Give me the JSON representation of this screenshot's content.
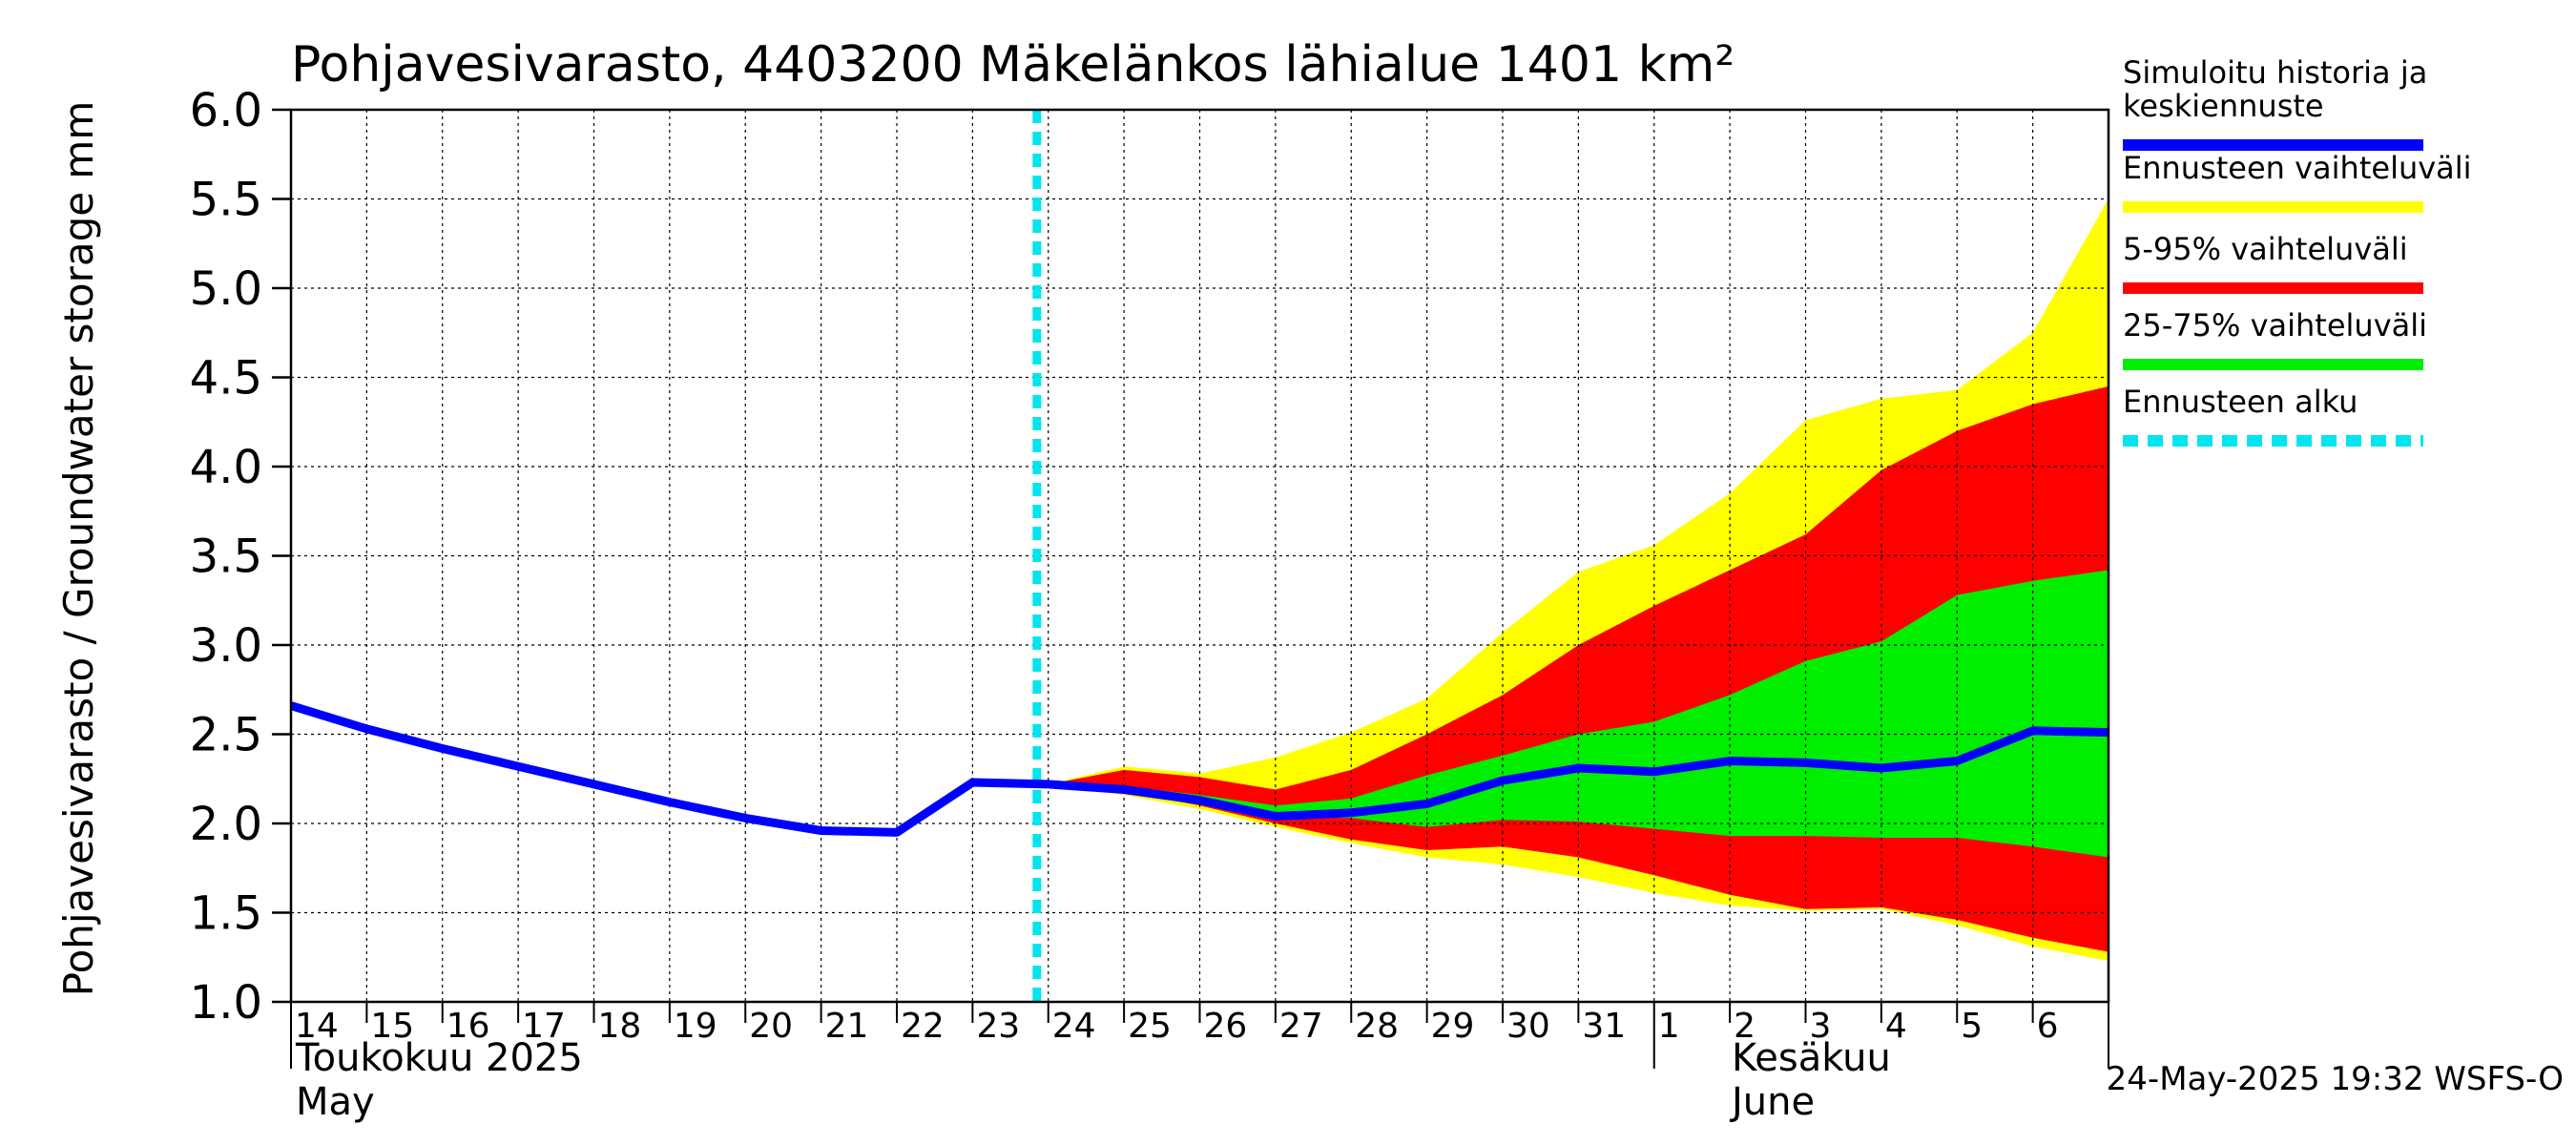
{
  "chart_data": {
    "type": "area",
    "title": "Pohjavesivarasto, 4403200 Mäkelänkos lähialue 1401 km²",
    "ylabel": "Pohjavesivarasto / Groundwater storage   mm",
    "ylim": [
      1.0,
      6.0
    ],
    "y_ticks": [
      "1.0",
      "1.5",
      "2.0",
      "2.5",
      "3.0",
      "3.5",
      "4.0",
      "4.5",
      "5.0",
      "5.5",
      "6.0"
    ],
    "x_tick_labels": [
      "14",
      "15",
      "16",
      "17",
      "18",
      "19",
      "20",
      "21",
      "22",
      "23",
      "24",
      "25",
      "26",
      "27",
      "28",
      "29",
      "30",
      "31",
      "1",
      "2",
      "3",
      "4",
      "5",
      "6"
    ],
    "month_labels": {
      "may_fi": "Toukokuu  2025",
      "may_en": "May",
      "june_fi": "Kesäkuu",
      "june_en": "June"
    },
    "forecast_start_day_index": 9.85,
    "history": {
      "name": "Simuloitu historia ja keskiennuste",
      "x": [
        0,
        1,
        2,
        3,
        4,
        5,
        6,
        7,
        8,
        9,
        10
      ],
      "y": [
        2.66,
        2.53,
        2.42,
        2.32,
        2.22,
        2.12,
        2.03,
        1.96,
        1.95,
        2.23,
        2.22
      ]
    },
    "forecast_x": [
      10,
      11,
      12,
      13,
      14,
      15,
      16,
      17,
      18,
      19,
      20,
      21,
      22,
      23,
      24
    ],
    "median": [
      2.22,
      2.19,
      2.13,
      2.04,
      2.06,
      2.11,
      2.24,
      2.31,
      2.29,
      2.35,
      2.34,
      2.31,
      2.35,
      2.52,
      2.51
    ],
    "p25": [
      2.22,
      2.19,
      2.12,
      2.04,
      2.03,
      1.98,
      2.02,
      2.01,
      1.97,
      1.93,
      1.93,
      1.92,
      1.92,
      1.87,
      1.81
    ],
    "p75": [
      2.22,
      2.21,
      2.16,
      2.1,
      2.14,
      2.27,
      2.38,
      2.5,
      2.57,
      2.72,
      2.91,
      3.02,
      3.28,
      3.36,
      3.42
    ],
    "p5": [
      2.22,
      2.18,
      2.1,
      2.0,
      1.91,
      1.85,
      1.87,
      1.81,
      1.71,
      1.6,
      1.52,
      1.53,
      1.46,
      1.36,
      1.28
    ],
    "p95": [
      2.22,
      2.3,
      2.26,
      2.19,
      2.3,
      2.5,
      2.72,
      3.0,
      3.22,
      3.42,
      3.62,
      3.98,
      4.2,
      4.35,
      4.45
    ],
    "min": [
      2.22,
      2.16,
      2.08,
      1.98,
      1.89,
      1.81,
      1.77,
      1.7,
      1.61,
      1.54,
      1.51,
      1.52,
      1.43,
      1.31,
      1.23
    ],
    "max": [
      2.22,
      2.32,
      2.28,
      2.37,
      2.51,
      2.7,
      3.07,
      3.41,
      3.56,
      3.85,
      4.26,
      4.38,
      4.43,
      4.75,
      5.5
    ],
    "legend": [
      {
        "label_lines": [
          "Simuloitu historia ja",
          "keskiennuste"
        ],
        "color": "#0000ff",
        "style": "solid"
      },
      {
        "label_lines": [
          "Ennusteen vaihteluväli"
        ],
        "color": "#ffff00",
        "style": "solid"
      },
      {
        "label_lines": [
          "5-95% vaihteluväli"
        ],
        "color": "#ff0000",
        "style": "solid"
      },
      {
        "label_lines": [
          "25-75% vaihteluväli"
        ],
        "color": "#00ee00",
        "style": "solid"
      },
      {
        "label_lines": [
          "Ennusteen alku"
        ],
        "color": "#00e5ee",
        "style": "dashed"
      }
    ],
    "colors": {
      "history": "#0000ff",
      "range_full": "#ffff00",
      "range_5_95": "#ff0000",
      "range_25_75": "#00ee00",
      "forecast_start": "#00e5ee"
    },
    "footer": "24-May-2025 19:32 WSFS-O"
  }
}
